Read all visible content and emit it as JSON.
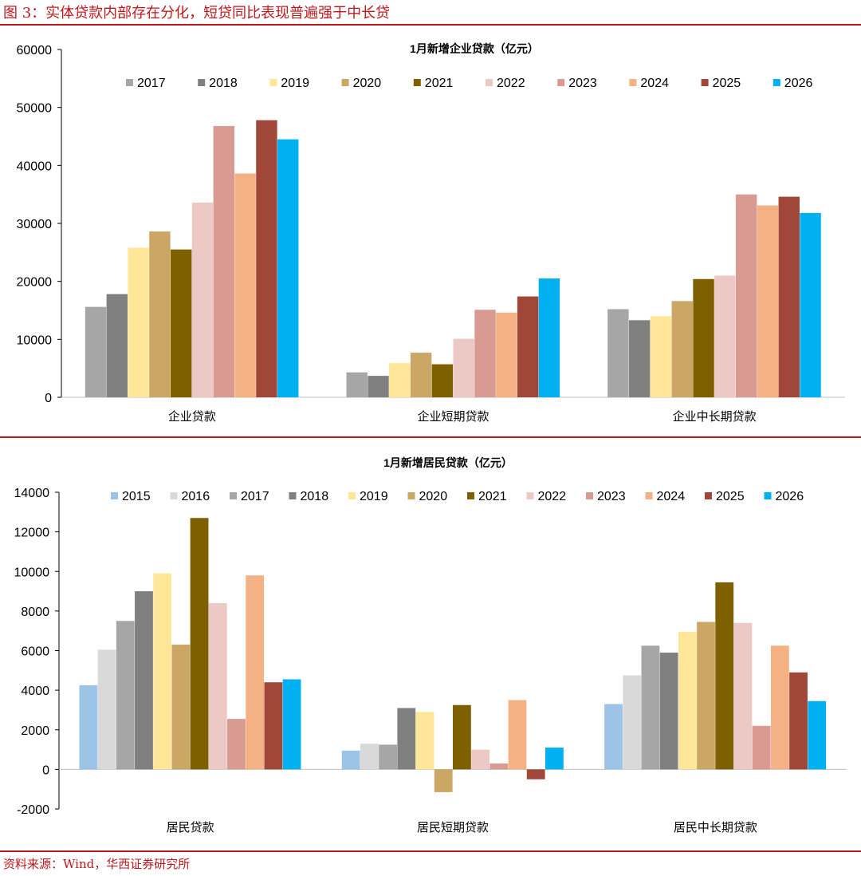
{
  "figure_title": "图 3：实体贷款内部存在分化，短贷同比表现普遍强于中长贷",
  "source": "资料来源：Wind，华西证券研究所",
  "chart_data": [
    {
      "type": "bar",
      "title": "1月新增企业贷款（亿元）",
      "xlabel": "",
      "ylabel": "",
      "ylim": [
        0,
        60000
      ],
      "yticks": [
        0,
        10000,
        20000,
        30000,
        40000,
        50000,
        60000
      ],
      "legend_position": "top",
      "categories": [
        "企业贷款",
        "企业短期贷款",
        "企业中长期贷款"
      ],
      "series": [
        {
          "name": "2017",
          "color": "#a6a6a6",
          "values": [
            15600,
            4300,
            15200
          ]
        },
        {
          "name": "2018",
          "color": "#808080",
          "values": [
            17800,
            3700,
            13300
          ]
        },
        {
          "name": "2019",
          "color": "#ffe699",
          "values": [
            25800,
            5900,
            14000
          ]
        },
        {
          "name": "2020",
          "color": "#cca664",
          "values": [
            28600,
            7700,
            16600
          ]
        },
        {
          "name": "2021",
          "color": "#7f6000",
          "values": [
            25500,
            5700,
            20400
          ]
        },
        {
          "name": "2022",
          "color": "#ecc9c5",
          "values": [
            33600,
            10100,
            21000
          ]
        },
        {
          "name": "2023",
          "color": "#d99a92",
          "values": [
            46800,
            15100,
            35000
          ]
        },
        {
          "name": "2024",
          "color": "#f4b183",
          "values": [
            38600,
            14600,
            33100
          ]
        },
        {
          "name": "2025",
          "color": "#a0473a",
          "values": [
            47800,
            17400,
            34600
          ]
        },
        {
          "name": "2026",
          "color": "#00b0f0",
          "values": [
            44500,
            20500,
            31800
          ]
        }
      ]
    },
    {
      "type": "bar",
      "title": "1月新增居民贷款（亿元）",
      "xlabel": "",
      "ylabel": "",
      "ylim": [
        -2000,
        14000
      ],
      "yticks": [
        -2000,
        0,
        2000,
        4000,
        6000,
        8000,
        10000,
        12000,
        14000
      ],
      "legend_position": "top",
      "categories": [
        "居民贷款",
        "居民短期贷款",
        "居民中长期贷款"
      ],
      "series": [
        {
          "name": "2015",
          "color": "#9dc3e6",
          "values": [
            4250,
            950,
            3300
          ]
        },
        {
          "name": "2016",
          "color": "#d9d9d9",
          "values": [
            6050,
            1300,
            4750
          ]
        },
        {
          "name": "2017",
          "color": "#a6a6a6",
          "values": [
            7500,
            1250,
            6250
          ]
        },
        {
          "name": "2018",
          "color": "#808080",
          "values": [
            9000,
            3100,
            5900
          ]
        },
        {
          "name": "2019",
          "color": "#ffe699",
          "values": [
            9900,
            2900,
            6950
          ]
        },
        {
          "name": "2020",
          "color": "#cca664",
          "values": [
            6300,
            -1150,
            7450
          ]
        },
        {
          "name": "2021",
          "color": "#7f6000",
          "values": [
            12700,
            3250,
            9450
          ]
        },
        {
          "name": "2022",
          "color": "#ecc9c5",
          "values": [
            8400,
            1000,
            7400
          ]
        },
        {
          "name": "2023",
          "color": "#d99a92",
          "values": [
            2550,
            300,
            2200
          ]
        },
        {
          "name": "2024",
          "color": "#f4b183",
          "values": [
            9800,
            3500,
            6250
          ]
        },
        {
          "name": "2025",
          "color": "#a0473a",
          "values": [
            4400,
            -500,
            4900
          ]
        },
        {
          "name": "2026",
          "color": "#00b0f0",
          "values": [
            4550,
            1100,
            3450
          ]
        }
      ]
    }
  ]
}
